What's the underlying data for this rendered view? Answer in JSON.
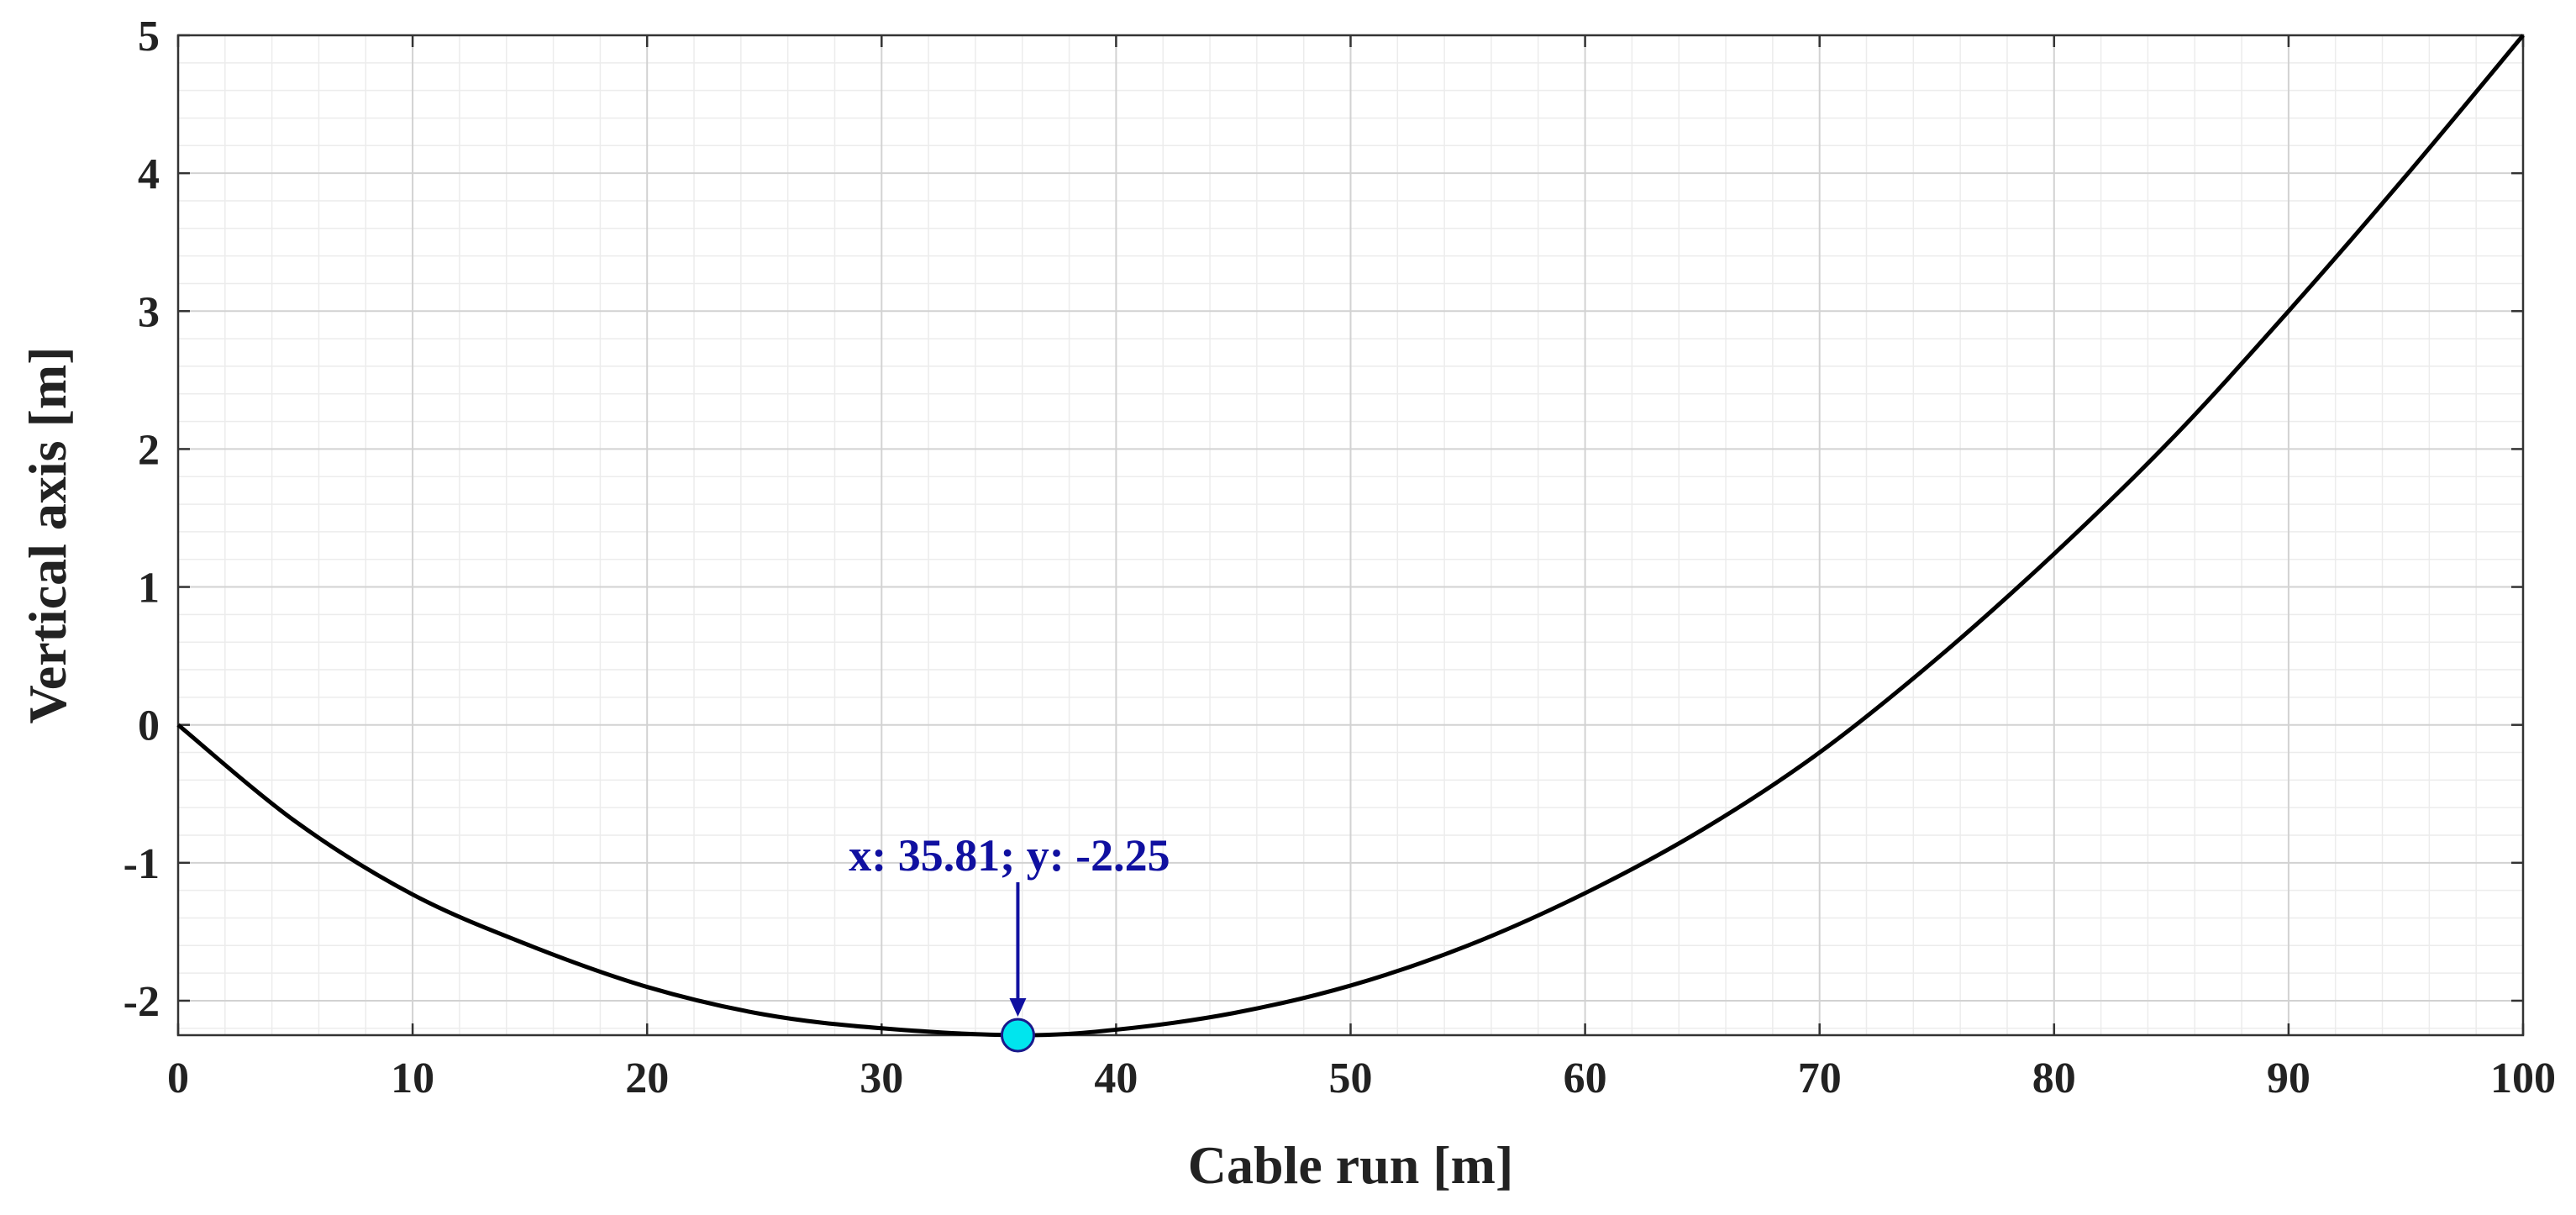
{
  "chart_data": {
    "type": "line",
    "xlabel": "Cable run [m]",
    "ylabel": "Vertical axis [m]",
    "xlim": [
      0,
      100
    ],
    "ylim": [
      -2.25,
      5
    ],
    "x_ticks": [
      0,
      10,
      20,
      30,
      40,
      50,
      60,
      70,
      80,
      90,
      100
    ],
    "y_ticks": [
      -2,
      -1,
      0,
      1,
      2,
      3,
      4,
      5
    ],
    "grid": true,
    "minor_grid": true,
    "series": [
      {
        "color": "#000000",
        "x": [
          0,
          5,
          10,
          15,
          20,
          25,
          30,
          35.81,
          40,
          45,
          50,
          55,
          60,
          65,
          70,
          75,
          80,
          85,
          90,
          95,
          100
        ],
        "y": [
          0,
          -0.7,
          -1.23,
          -1.6,
          -1.9,
          -2.1,
          -2.2,
          -2.25,
          -2.21,
          -2.09,
          -1.89,
          -1.6,
          -1.22,
          -0.76,
          -0.2,
          0.48,
          1.24,
          2.07,
          3.0,
          3.98,
          5.0
        ]
      }
    ],
    "marker": {
      "x": 35.81,
      "y": -2.25,
      "fill": "#00e5ee",
      "stroke": "#1a1a8c"
    },
    "annotation": {
      "text": "x: 35.81; y: -2.25",
      "color": "#1010a0"
    }
  }
}
